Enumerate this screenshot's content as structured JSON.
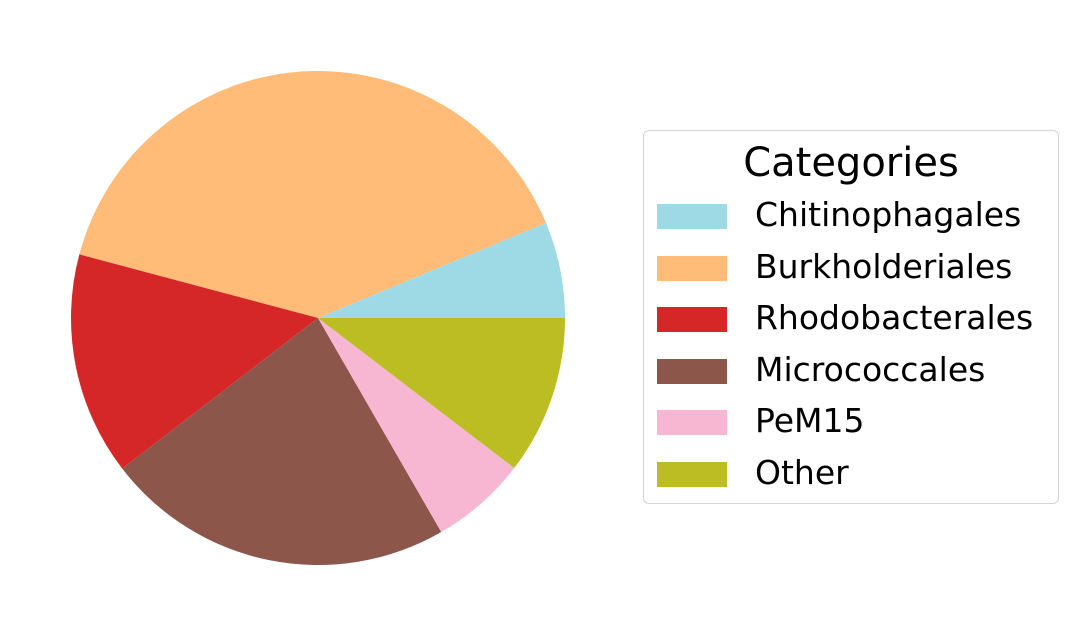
{
  "chart_data": {
    "type": "pie",
    "title": "",
    "legend": {
      "title": "Categories",
      "placement": "right"
    },
    "start_angle_deg": 0,
    "direction": "counterclockwise",
    "slices": [
      {
        "label": "Chitinophagales",
        "value": 6.3,
        "color": "#9edae5"
      },
      {
        "label": "Burkholderiales",
        "value": 39.6,
        "color": "#ffbb78"
      },
      {
        "label": "Rhodobacterales",
        "value": 14.6,
        "color": "#d62728"
      },
      {
        "label": "Micrococcales",
        "value": 22.9,
        "color": "#8c564b"
      },
      {
        "label": "PeM15",
        "value": 6.3,
        "color": "#f7b6d2"
      },
      {
        "label": "Other",
        "value": 10.4,
        "color": "#bcbd22"
      }
    ]
  }
}
